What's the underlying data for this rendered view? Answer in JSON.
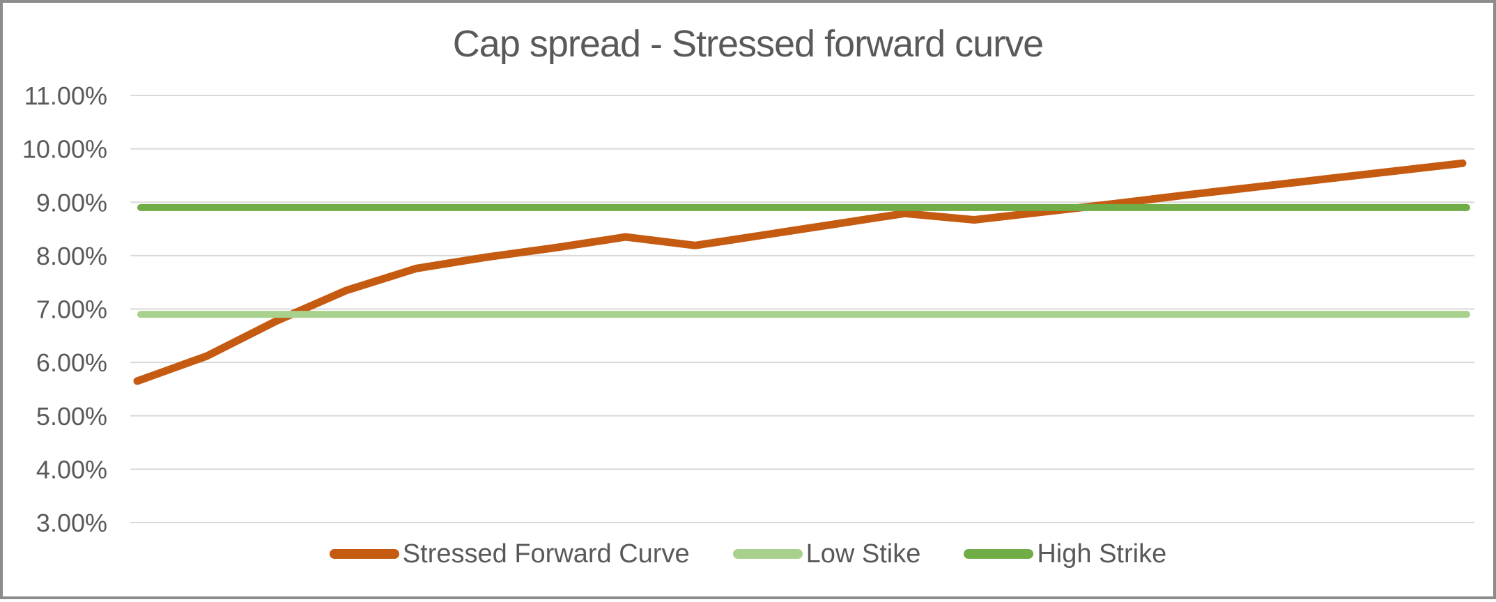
{
  "chart_data": {
    "type": "line",
    "title": "Cap spread - Stressed forward curve",
    "y_axis": {
      "tick_labels": [
        "11.00%",
        "10.00%",
        "9.00%",
        "8.00%",
        "7.00%",
        "6.00%",
        "5.00%",
        "4.00%",
        "3.00%"
      ],
      "max": 11.0,
      "min": 3.0,
      "step": 1.0,
      "format": "percent"
    },
    "x_axis": {
      "tick_labels_visible": false
    },
    "grid": "horizontal",
    "legend_position": "bottom",
    "series": [
      {
        "name": "Stressed Forward Curve",
        "type": "line",
        "color": "#C55A11",
        "values_pct": [
          5.65,
          6.12,
          6.78,
          7.35,
          7.76,
          7.97,
          8.15,
          8.35,
          8.19,
          8.39,
          8.59,
          8.79,
          8.67,
          8.82,
          8.97,
          9.13,
          9.28,
          9.43,
          9.58,
          9.73
        ]
      },
      {
        "name": "Low Stike",
        "type": "constant-line",
        "color": "#A9D18E",
        "value_pct": 6.9
      },
      {
        "name": "High Strike",
        "type": "constant-line",
        "color": "#70AD47",
        "value_pct": 8.9
      }
    ],
    "style": {
      "text_color": "#595959",
      "gridline_color": "#D9D9D9",
      "frame_border_color": "#8C8C8C",
      "background_color": "#FFFFFF"
    }
  }
}
